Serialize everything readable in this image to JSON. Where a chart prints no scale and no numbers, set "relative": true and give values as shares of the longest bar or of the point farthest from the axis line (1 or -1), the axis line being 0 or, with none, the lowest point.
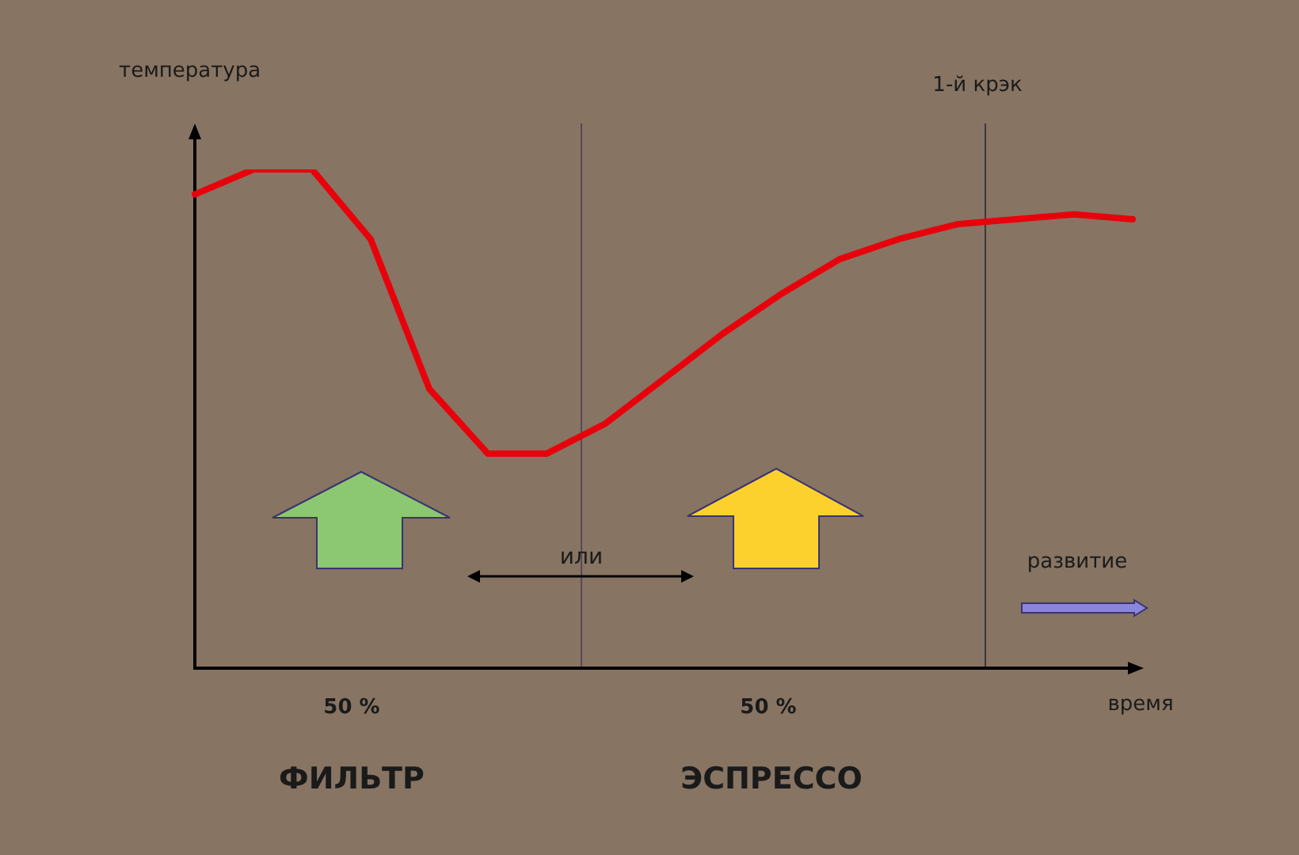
{
  "chart_data": {
    "type": "line",
    "relative": true,
    "marker": "none",
    "line_style": "solid",
    "ylabel": "температура",
    "xlabel": "время",
    "categories": [
      null,
      null,
      null,
      null,
      null,
      null,
      null,
      null,
      null,
      null,
      null,
      null,
      null,
      null,
      null,
      null,
      null
    ],
    "series": [
      {
        "color": "#e8000b",
        "values": [
          0.95,
          1,
          1,
          0.86,
          0.56,
          0.43,
          0.43,
          0.49,
          0.58,
          0.67,
          0.75,
          0.82,
          0.86,
          0.89,
          0.9,
          0.91,
          0.9
        ]
      }
    ],
    "annotations": [
      "50 %",
      "50 %",
      "ФИЛЬТР",
      "ЭСПРЕССО",
      "или",
      "развитие",
      "1-й крэк"
    ]
  }
}
